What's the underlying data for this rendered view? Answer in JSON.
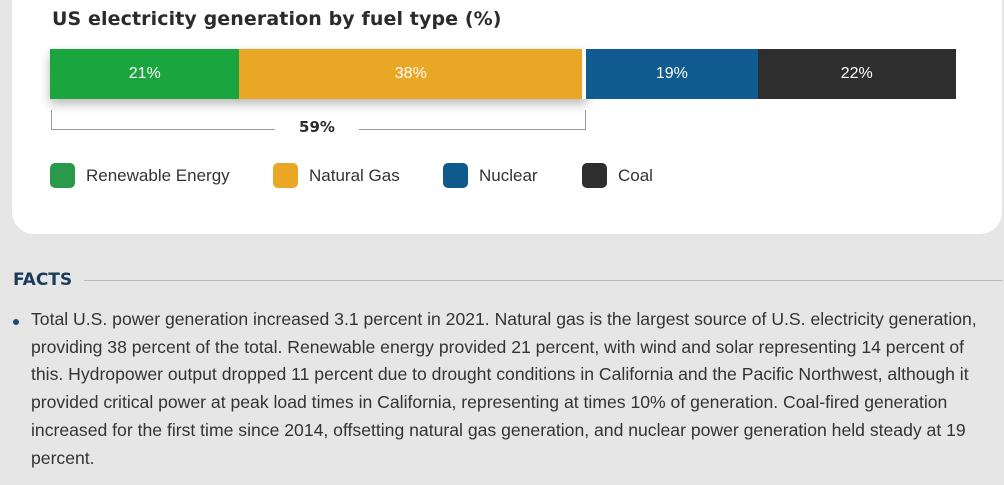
{
  "chart_data": {
    "type": "bar",
    "stacked": true,
    "title": "US electricity generation by fuel type (%)",
    "categories": [
      "Renewable Energy",
      "Natural Gas",
      "Nuclear",
      "Coal"
    ],
    "values": [
      21,
      38,
      19,
      22
    ],
    "value_labels": [
      "21%",
      "38%",
      "19%",
      "22%"
    ],
    "colors": [
      "#1aa53f",
      "#eaa625",
      "#105b8f",
      "#2e2e2e"
    ],
    "bracket": {
      "label": "59%",
      "spans": [
        "Renewable Energy",
        "Natural Gas"
      ]
    },
    "legend": [
      {
        "label": "Renewable Energy",
        "color": "#2a9a4a"
      },
      {
        "label": "Natural Gas",
        "color": "#eaa625"
      },
      {
        "label": "Nuclear",
        "color": "#0f5a8c"
      },
      {
        "label": "Coal",
        "color": "#2e2e2e"
      }
    ]
  },
  "facts": {
    "heading": "FACTS",
    "items": [
      "Total U.S. power generation increased 3.1 percent in 2021. Natural gas is the largest source of U.S. electricity generation, providing 38 percent of the total. Renewable energy provided 21 percent, with wind and solar representing 14 percent of this. Hydropower output dropped 11 percent due to drought conditions in California and the Pacific Northwest, although it provided critical power at peak load times in California, representing at times 10% of generation. Coal-fired generation increased for the first time since 2014, offsetting natural gas generation, and nuclear power generation held  steady at 19 percent."
    ]
  }
}
